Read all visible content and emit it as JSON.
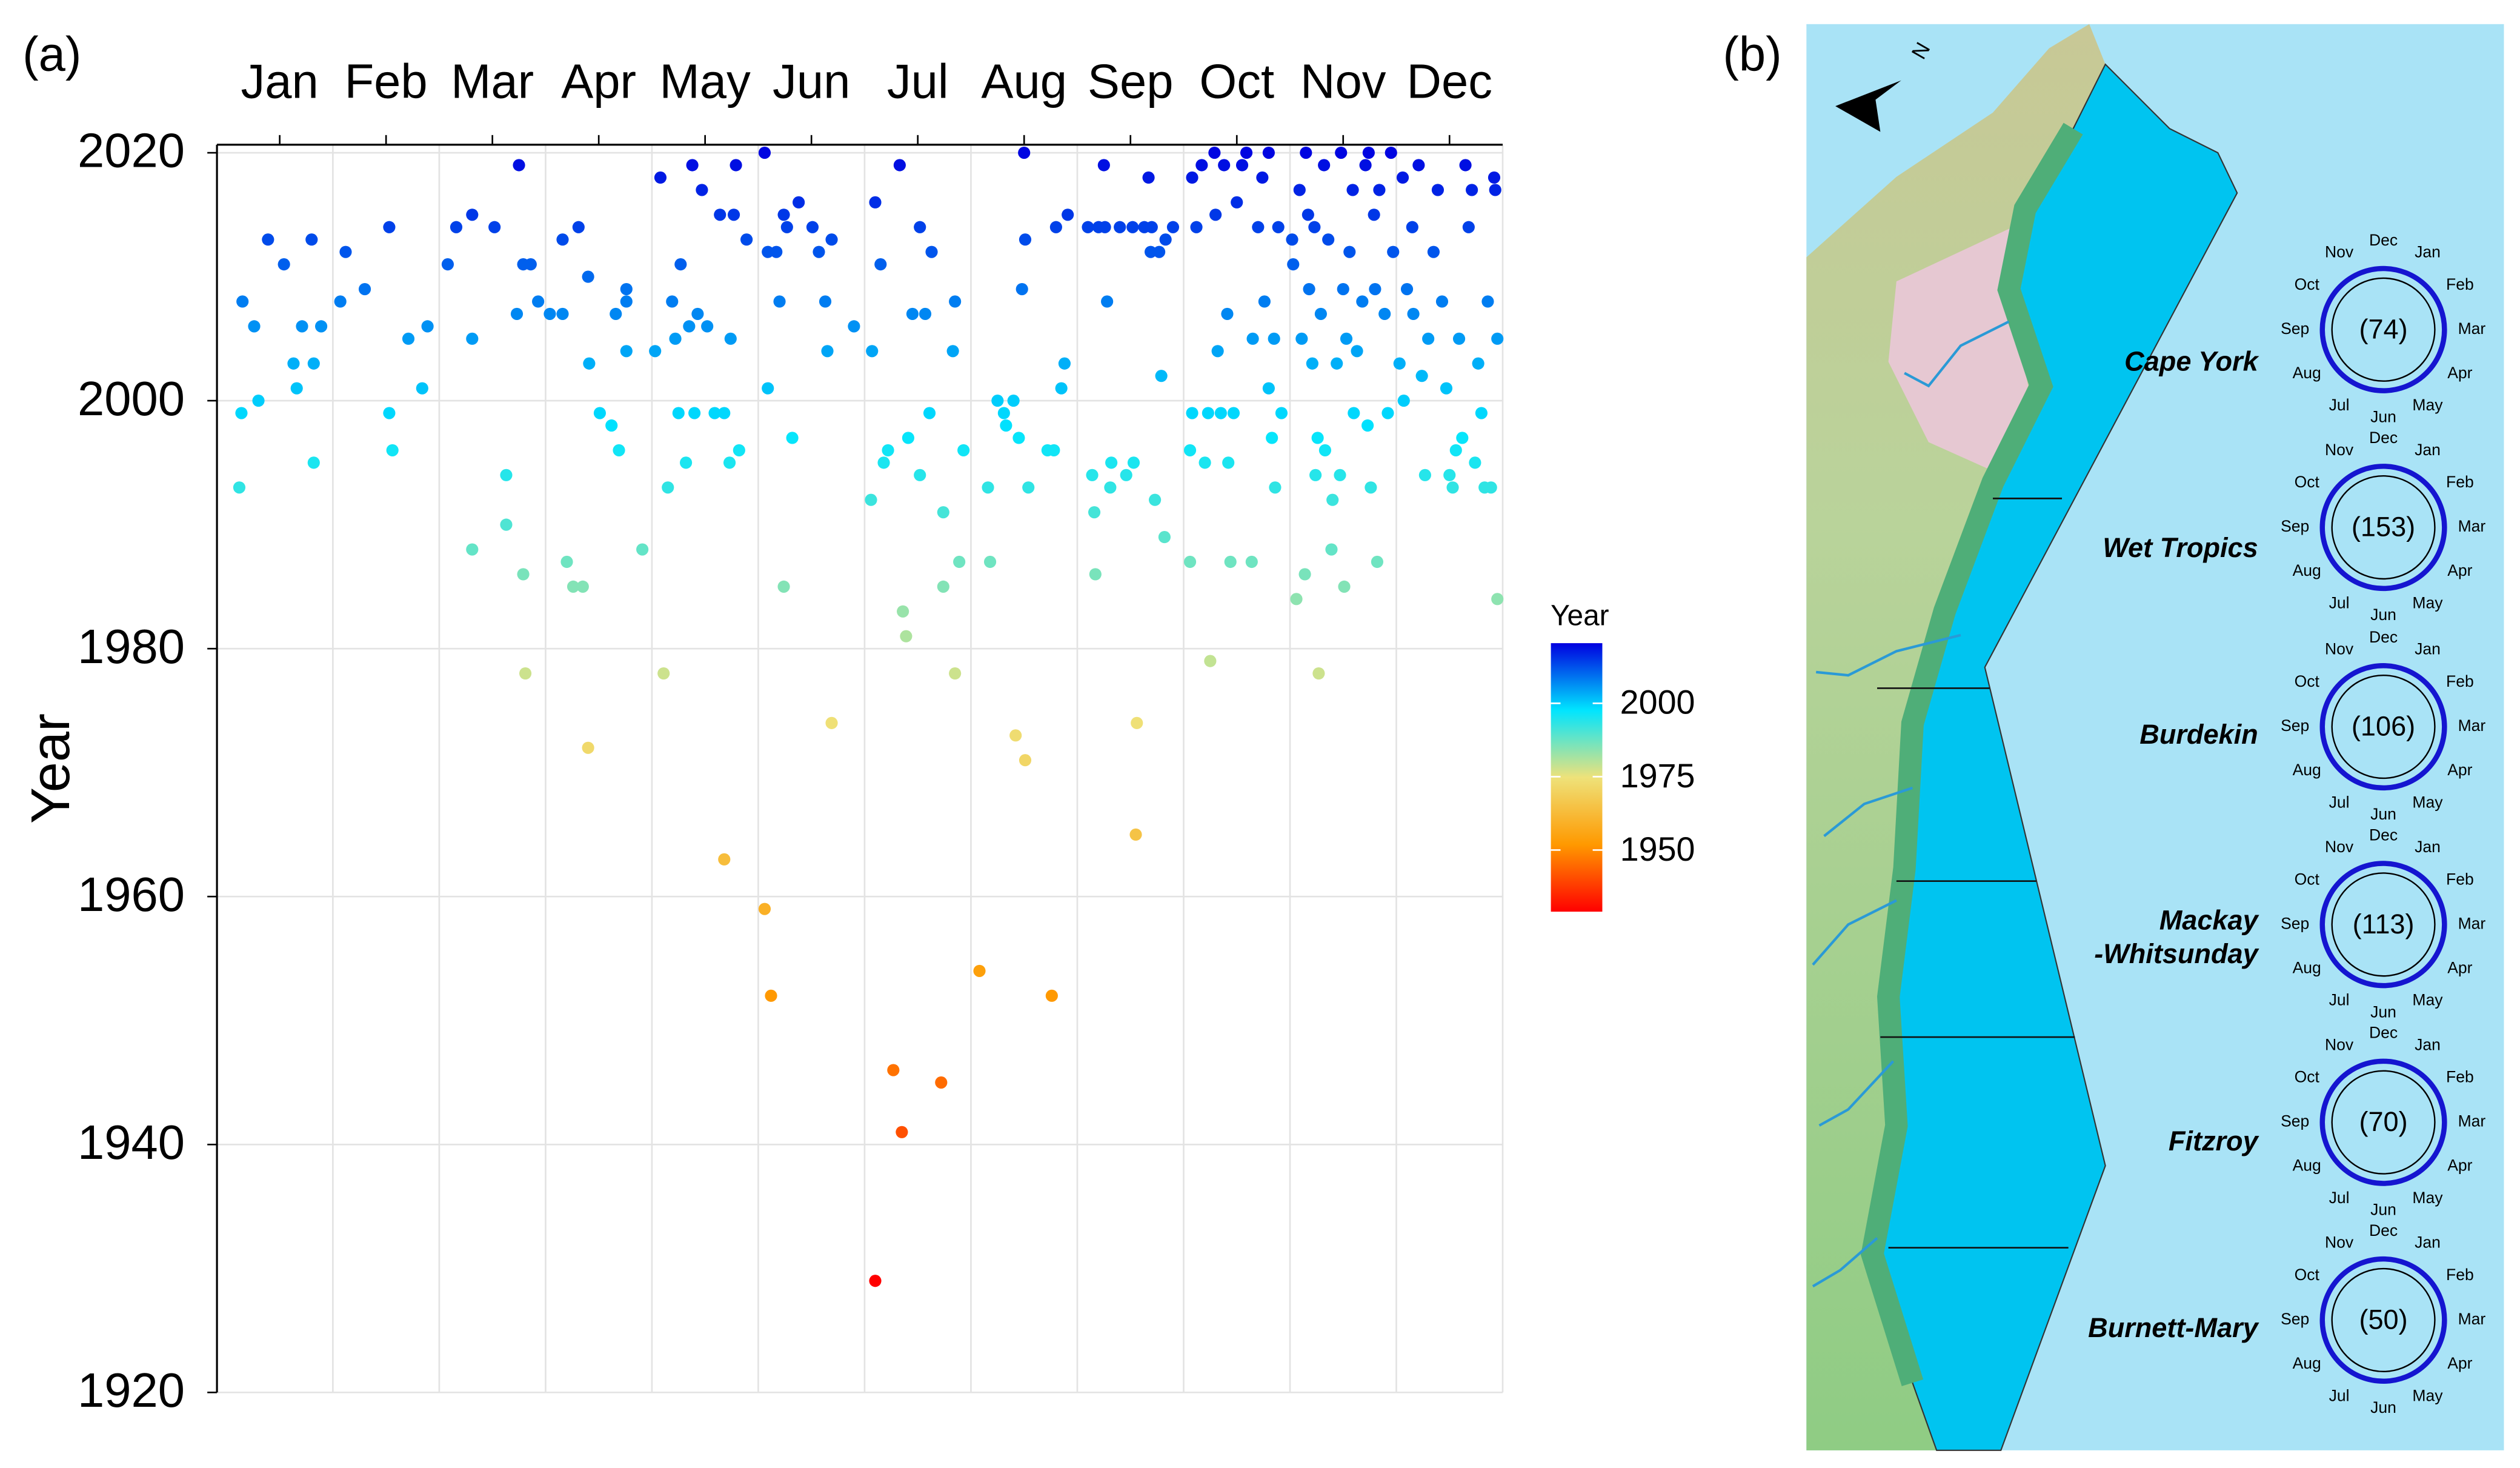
{
  "chart_data": {
    "type": "scatter",
    "label": "(a)",
    "y_label": "Year",
    "xlim": [
      -0.09,
      12
    ],
    "ylim": [
      1920,
      2020.65
    ],
    "xticks": [
      {
        "value": 0.5,
        "label": "Jan"
      },
      {
        "value": 1.5,
        "label": "Feb"
      },
      {
        "value": 2.5,
        "label": "Mar"
      },
      {
        "value": 3.5,
        "label": "Apr"
      },
      {
        "value": 4.5,
        "label": "May"
      },
      {
        "value": 5.5,
        "label": "Jun"
      },
      {
        "value": 6.5,
        "label": "Jul"
      },
      {
        "value": 7.5,
        "label": "Aug"
      },
      {
        "value": 8.5,
        "label": "Sep"
      },
      {
        "value": 9.5,
        "label": "Oct"
      },
      {
        "value": 10.5,
        "label": "Nov"
      },
      {
        "value": 11.5,
        "label": "Dec"
      }
    ],
    "xgrid": [
      1,
      2,
      3,
      4,
      5,
      6,
      7,
      8,
      9,
      10,
      11,
      12
    ],
    "yticks": [
      1920,
      1940,
      1960,
      1980,
      2000,
      2020
    ],
    "grid": true,
    "colorbar": {
      "title": "Year",
      "lim": [
        1929,
        2020.5
      ],
      "ticks": [
        1950,
        1975,
        2000
      ],
      "colors": [
        "#ff0000",
        "#ff9900",
        "#eee27a",
        "#00e5ff",
        "#0000e0"
      ]
    },
    "x": [
      0.12,
      0.14,
      0.15,
      0.26,
      0.3,
      0.39,
      0.54,
      0.63,
      0.66,
      0.71,
      0.8,
      0.82,
      0.82,
      0.89,
      1.07,
      1.12,
      1.3,
      1.53,
      1.53,
      1.56,
      1.71,
      1.84,
      1.89,
      2.08,
      2.16,
      2.31,
      2.31,
      2.31,
      2.52,
      2.63,
      2.63,
      2.73,
      2.75,
      2.79,
      2.79,
      2.81,
      2.86,
      2.93,
      3.04,
      3.16,
      3.16,
      3.2,
      3.26,
      3.31,
      3.35,
      3.4,
      3.4,
      3.41,
      3.51,
      3.62,
      3.66,
      3.69,
      3.76,
      3.76,
      3.76,
      3.91,
      4.03,
      4.08,
      4.11,
      4.15,
      4.19,
      4.22,
      4.25,
      4.27,
      4.32,
      4.35,
      4.38,
      4.4,
      4.43,
      4.47,
      4.52,
      4.59,
      4.64,
      4.68,
      4.68,
      4.73,
      4.74,
      4.77,
      4.79,
      4.82,
      4.89,
      5.06,
      5.06,
      5.09,
      5.09,
      5.12,
      5.17,
      5.2,
      5.24,
      5.24,
      5.27,
      5.32,
      5.38,
      5.51,
      5.57,
      5.63,
      5.65,
      5.69,
      5.69,
      5.9,
      6.1,
      6.1,
      6.07,
      6.06,
      6.15,
      6.18,
      6.22,
      6.27,
      6.33,
      6.35,
      6.36,
      6.39,
      6.41,
      6.45,
      6.52,
      6.52,
      6.57,
      6.61,
      6.63,
      6.72,
      6.74,
      6.74,
      6.83,
      6.85,
      6.85,
      6.89,
      6.93,
      7.08,
      7.16,
      7.18,
      7.25,
      7.31,
      7.33,
      7.4,
      7.42,
      7.45,
      7.48,
      7.5,
      7.51,
      7.51,
      7.54,
      7.72,
      7.76,
      7.78,
      7.8,
      7.85,
      7.88,
      7.91,
      8.1,
      8.14,
      8.16,
      8.17,
      8.2,
      8.25,
      8.26,
      8.28,
      8.31,
      8.32,
      8.4,
      8.46,
      8.52,
      8.53,
      8.55,
      8.56,
      8.63,
      8.67,
      8.69,
      8.7,
      8.73,
      8.77,
      8.79,
      8.82,
      8.83,
      8.9,
      9.06,
      9.06,
      9.08,
      9.08,
      9.12,
      9.17,
      9.2,
      9.23,
      9.25,
      9.29,
      9.3,
      9.32,
      9.35,
      9.38,
      9.41,
      9.42,
      9.44,
      9.47,
      9.5,
      9.55,
      9.59,
      9.64,
      9.65,
      9.7,
      9.74,
      9.76,
      9.8,
      9.8,
      9.83,
      9.85,
      9.86,
      9.89,
      9.92,
      10.02,
      10.03,
      10.06,
      10.09,
      10.11,
      10.14,
      10.15,
      10.17,
      10.18,
      10.21,
      10.23,
      10.24,
      10.26,
      10.27,
      10.29,
      10.32,
      10.33,
      10.36,
      10.39,
      10.4,
      10.44,
      10.47,
      10.48,
      10.5,
      10.51,
      10.53,
      10.56,
      10.59,
      10.6,
      10.63,
      10.68,
      10.71,
      10.73,
      10.74,
      10.76,
      10.79,
      10.8,
      10.82,
      10.84,
      10.89,
      10.92,
      10.95,
      10.97,
      11.03,
      11.06,
      11.07,
      11.1,
      11.15,
      11.16,
      11.21,
      11.24,
      11.27,
      11.3,
      11.35,
      11.39,
      11.43,
      11.47,
      11.5,
      11.53,
      11.56,
      11.59,
      11.62,
      11.65,
      11.68,
      11.71,
      11.74,
      11.77,
      11.8,
      11.83,
      11.86,
      11.89,
      11.92,
      11.93,
      11.95,
      11.95
    ],
    "y": [
      1993,
      1999,
      2008,
      2006,
      2000,
      2013,
      2011,
      2003,
      2001,
      2006,
      2013,
      2003,
      1995,
      2006,
      2008,
      2012,
      2009,
      2014,
      1999,
      1996,
      2005,
      2001,
      2006,
      2011,
      2014,
      1988,
      2015,
      2005,
      2014,
      1994,
      1990,
      2007,
      2019,
      2011,
      1986,
      1978,
      2011,
      2008,
      2007,
      2007,
      2013,
      1987,
      1985,
      2014,
      1985,
      2010,
      1972,
      2003,
      1999,
      1998,
      2007,
      1996,
      2008,
      2009,
      2004,
      1988,
      2004,
      2018,
      1978,
      1993,
      2008,
      2005,
      1999,
      2011,
      1995,
      2006,
      2019,
      1999,
      2007,
      2017,
      2006,
      1999,
      2015,
      1999,
      1963,
      1995,
      2005,
      2015,
      2019,
      1996,
      2013,
      2020,
      1959,
      2012,
      2001,
      1952,
      2012,
      2008,
      1985,
      2015,
      2014,
      1997,
      2016,
      2014,
      2012,
      2008,
      2004,
      1974,
      2013,
      2006,
      2016,
      1929,
      2004,
      1992,
      2011,
      1995,
      1996,
      1946,
      2019,
      1941,
      1983,
      1981,
      1997,
      2007,
      2014,
      1994,
      2007,
      1999,
      2012,
      1945,
      1991,
      1985,
      2004,
      2008,
      1978,
      1987,
      1996,
      1954,
      1993,
      1987,
      2000,
      1999,
      1998,
      2000,
      1973,
      1997,
      2009,
      2020,
      1971,
      2013,
      1993,
      1996,
      1952,
      1996,
      2014,
      2001,
      2003,
      2015,
      2014,
      1994,
      1991,
      1986,
      2014,
      2019,
      2014,
      2008,
      1993,
      1995,
      2014,
      1994,
      2014,
      1995,
      1965,
      1974,
      2014,
      2018,
      2012,
      2014,
      1992,
      2012,
      2002,
      1989,
      2013,
      2014,
      1987,
      1996,
      2018,
      1999,
      2014,
      2019,
      1995,
      1999,
      1979,
      2020,
      2015,
      2004,
      1999,
      2019,
      2007,
      1995,
      1987,
      1999,
      2016,
      2019,
      2020,
      1987,
      2005,
      2014,
      2018,
      2008,
      2020,
      2001,
      1997,
      2005,
      1993,
      2014,
      1999,
      2013,
      2011,
      1984,
      2017,
      2005,
      1986,
      2020,
      2015,
      2009,
      2003,
      2014,
      1994,
      1997,
      1978,
      2007,
      2019,
      1996,
      2013,
      1988,
      1992,
      2003,
      1994,
      2020,
      2009,
      1985,
      2005,
      2012,
      2017,
      1999,
      2004,
      2008,
      2019,
      1998,
      2020,
      1993,
      2015,
      2009,
      1987,
      2017,
      2007,
      1999,
      2020,
      2012,
      2003,
      2018,
      2000,
      2009,
      2014,
      2007,
      2019,
      2002,
      1994,
      2005,
      2012,
      2017,
      2008,
      2001,
      1994,
      1993,
      1996,
      2005,
      1997,
      2019,
      2014,
      2017,
      1995,
      2003,
      1999,
      1993,
      2008,
      1993,
      2018,
      2017,
      2005,
      1984
    ]
  },
  "map": {
    "label": "(b)",
    "north": "N",
    "months": [
      "Dec",
      "Jan",
      "Feb",
      "Mar",
      "Apr",
      "May",
      "Jun",
      "Jul",
      "Aug",
      "Sep",
      "Oct",
      "Nov"
    ],
    "regions": [
      {
        "name_lines": [
          "Cape York"
        ],
        "count": "(74)"
      },
      {
        "name_lines": [
          "Wet Tropics"
        ],
        "count": "(153)"
      },
      {
        "name_lines": [
          "Burdekin"
        ],
        "count": "(106)"
      },
      {
        "name_lines": [
          "Mackay",
          "-Whitsunday"
        ],
        "count": "(113)"
      },
      {
        "name_lines": [
          "Fitzroy"
        ],
        "count": "(70)"
      },
      {
        "name_lines": [
          "Burnett-Mary"
        ],
        "count": "(50)"
      }
    ]
  }
}
